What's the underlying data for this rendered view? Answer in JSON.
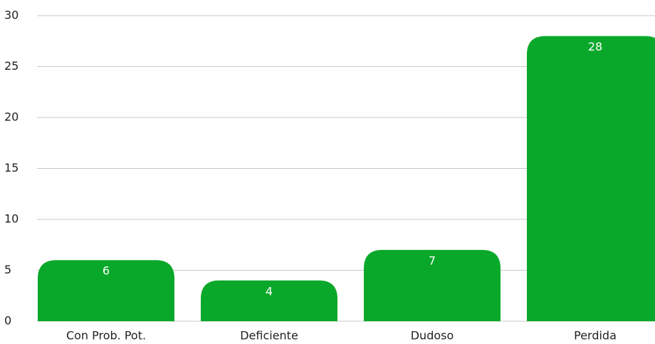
{
  "chart_data": {
    "type": "bar",
    "categories": [
      "Con Prob. Pot.",
      "Deficiente",
      "Dudoso",
      "Perdida"
    ],
    "values": [
      6,
      4,
      7,
      28
    ],
    "color": "#0aa82a",
    "ylim": [
      0,
      30
    ],
    "yticks": [
      0,
      5,
      10,
      15,
      20,
      25,
      30
    ],
    "grid": true
  }
}
